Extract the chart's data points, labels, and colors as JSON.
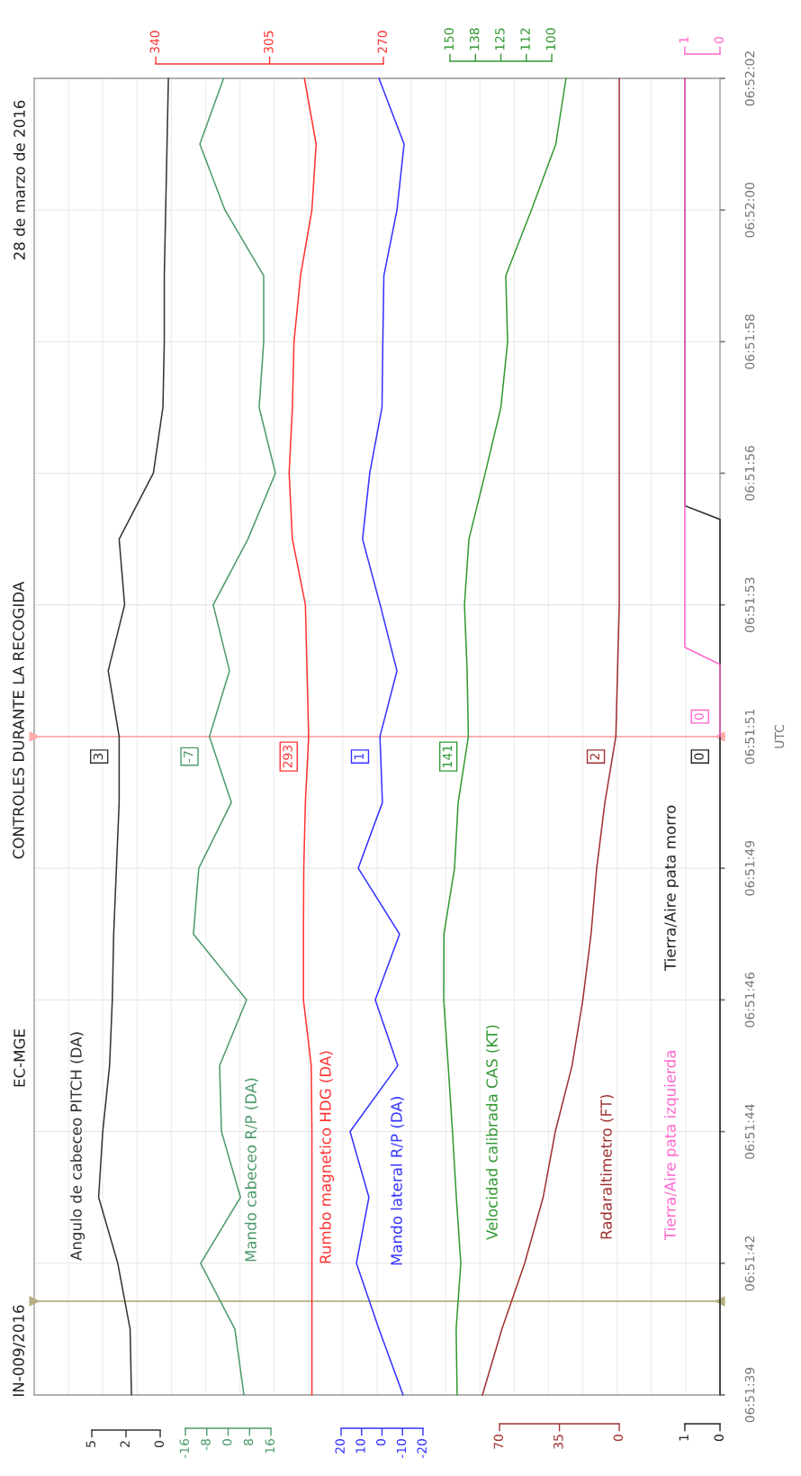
{
  "chart_data": [
    {
      "type": "line",
      "orientation": "horizontal",
      "title": "CONTROLES DURANTE LA RECOGIDA",
      "subtitle": "28 de marzo de 2016",
      "annotations": [
        "IN-009/2016",
        "EC-MGE"
      ],
      "ylabel": "UTC",
      "grid": true,
      "x": [
        6.860958,
        6.861278,
        6.861597,
        6.861917,
        6.862236,
        6.862556,
        6.862875,
        6.863194,
        6.863514,
        6.863833,
        6.864153,
        6.864472,
        6.864792,
        6.865111,
        6.865431,
        6.86575,
        6.866069,
        6.866389,
        6.866708,
        6.867028,
        6.867347
      ],
      "ylim": [
        6.860958,
        6.867347
      ],
      "yticks": [
        {
          "value": 6.860958,
          "label": "06:51:39"
        },
        {
          "value": 6.861597,
          "label": "06:51:42"
        },
        {
          "value": 6.862236,
          "label": "06:51:44"
        },
        {
          "value": 6.862875,
          "label": "06:51:46"
        },
        {
          "value": 6.863514,
          "label": "06:51:49"
        },
        {
          "value": 6.864153,
          "label": "06:51:51"
        },
        {
          "value": 6.864792,
          "label": "06:51:53"
        },
        {
          "value": 6.865431,
          "label": "06:51:56"
        },
        {
          "value": 6.866069,
          "label": "06:51:58"
        },
        {
          "value": 6.866708,
          "label": "06:52:00"
        },
        {
          "value": 6.867347,
          "label": "06:52:02"
        }
      ],
      "xlim": [
        9.21,
        -40.92
      ],
      "xticks": [
        0,
        {
          "value": 2.5,
          "label": "2"
        },
        5
      ],
      "ref_lines": [
        {
          "axis": "y",
          "value": 6.864153,
          "color": "#ffaaaa"
        },
        {
          "axis": "y",
          "value": 6.861413,
          "color": "#b5ae80"
        }
      ],
      "series": [
        {
          "name": "Angulo de cabeceo PITCH (DA)",
          "color": "#333333",
          "values": [
            2.1,
            2.2,
            3.1,
            4.5,
            4.2,
            3.7,
            3.5,
            3.4,
            3.2,
            3.0,
            3,
            3.8,
            2.6,
            3.0,
            0.5,
            -0.2,
            -0.3,
            -0.3,
            -0.4,
            -0.5,
            -0.6
          ],
          "value_labels": [
            null,
            null,
            null,
            null,
            null,
            null,
            null,
            null,
            null,
            null,
            "3",
            null,
            null,
            null,
            null,
            null,
            null,
            null,
            null,
            null,
            null
          ]
        }
      ]
    },
    {
      "type": "line",
      "orientation": "horizontal",
      "tick_labels": "x",
      "x": [
        6.860958,
        6.861278,
        6.861597,
        6.861917,
        6.862236,
        6.862556,
        6.862875,
        6.863194,
        6.863514,
        6.863833,
        6.864153,
        6.864472,
        6.864792,
        6.865111,
        6.865431,
        6.86575,
        6.866069,
        6.866389,
        6.866708,
        6.867028,
        6.867347
      ],
      "ylim": [
        6.860958,
        6.867347
      ],
      "xlim": [
        -72.6,
        184.1
      ],
      "xticks": [
        -16,
        -8,
        0,
        8,
        16
      ],
      "series": [
        {
          "name": "Mando cabeceo R/P (DA)",
          "color": "#4c9a6a",
          "values": [
            5.9,
            2.5,
            -10.3,
            4.6,
            -2.5,
            -3.2,
            6.9,
            -13,
            -11,
            1.2,
            -7,
            0.5,
            -5.6,
            7.4,
            17.7,
            11.6,
            13.3,
            13.3,
            -1.2,
            -10.6,
            -1.7
          ],
          "value_labels": [
            null,
            null,
            null,
            null,
            null,
            null,
            null,
            null,
            null,
            null,
            "-7",
            null,
            null,
            null,
            null,
            null,
            null,
            null,
            null,
            null,
            null
          ]
        }
      ]
    },
    {
      "type": "line",
      "orientation": "horizontal",
      "tick_labels": "x",
      "x": [
        6.860958,
        6.861278,
        6.861597,
        6.861917,
        6.862236,
        6.862556,
        6.862875,
        6.863194,
        6.863514,
        6.863833,
        6.864153,
        6.864472,
        6.864792,
        6.865111,
        6.865431,
        6.86575,
        6.866069,
        6.866389,
        6.866708,
        6.867028,
        6.867347
      ],
      "ylim": [
        6.860958,
        6.867347
      ],
      "x2lim": [
        377.4,
        166.5
      ],
      "x2ticks": [
        270,
        305,
        340
      ],
      "series": [
        {
          "name": "Rumbo magnetico HDG (DA)",
          "color": "#ff3333",
          "axis": "x2",
          "values": [
            292,
            292,
            292,
            292,
            292,
            292.2,
            294.6,
            294.6,
            294.5,
            294,
            293,
            293.5,
            294,
            298,
            299,
            298,
            297.5,
            295.5,
            292,
            290.7,
            294.3
          ],
          "value_labels": [
            null,
            null,
            null,
            null,
            null,
            null,
            null,
            null,
            null,
            null,
            "293",
            null,
            null,
            null,
            null,
            null,
            null,
            null,
            null,
            null,
            null
          ]
        }
      ]
    },
    {
      "type": "line",
      "orientation": "horizontal",
      "tick_labels": "x",
      "x": [
        6.860958,
        6.861278,
        6.861597,
        6.861917,
        6.862236,
        6.862556,
        6.862875,
        6.863194,
        6.863514,
        6.863833,
        6.864153,
        6.864472,
        6.864792,
        6.865111,
        6.865431,
        6.86575,
        6.866069,
        6.866389,
        6.866708,
        6.867028,
        6.867347
      ],
      "ylim": [
        6.860958,
        6.867347
      ],
      "xlim": [
        169.9,
        -165.1
      ],
      "xticks": [
        -20,
        -10,
        0,
        10,
        20
      ],
      "series": [
        {
          "name": "Mando lateral R/P (DA)",
          "color": "#3333ff",
          "values": [
            -10.3,
            1.5,
            12.5,
            6.4,
            15.6,
            -7.7,
            3.3,
            -8.6,
            11.6,
            -0.2,
            1,
            -7.3,
            0.9,
            9.5,
            6,
            0,
            -0.4,
            -0.9,
            -7.3,
            -10.8,
            1.5
          ],
          "value_labels": [
            null,
            null,
            null,
            null,
            null,
            null,
            null,
            null,
            null,
            null,
            "1",
            null,
            null,
            null,
            null,
            null,
            null,
            null,
            null,
            null,
            null
          ]
        }
      ]
    },
    {
      "type": "line",
      "orientation": "horizontal",
      "tick_labels": "x",
      "x": [
        6.860958,
        6.861278,
        6.861597,
        6.861917,
        6.862236,
        6.862556,
        6.862875,
        6.863194,
        6.863514,
        6.863833,
        6.864153,
        6.864472,
        6.864792,
        6.865111,
        6.865431,
        6.86575,
        6.866069,
        6.866389,
        6.866708,
        6.867028,
        6.867347
      ],
      "ylim": [
        6.860958,
        6.867347
      ],
      "x2lim": [
        354.4,
        17.3
      ],
      "x2ticks": [
        100,
        {
          "value": 112.5,
          "label": "112"
        },
        125,
        {
          "value": 137.5,
          "label": "138"
        },
        150
      ],
      "series": [
        {
          "name": "Velocidad calibrada CAS (KT)",
          "color": "#339933",
          "axis": "x2",
          "values": [
            146.5,
            147,
            144.7,
            146.9,
            148.8,
            150.9,
            153.1,
            153,
            147.8,
            146,
            141,
            141.6,
            142.9,
            140.7,
            132.7,
            125,
            121.7,
            122.6,
            110,
            98,
            93
          ],
          "value_labels": [
            null,
            null,
            null,
            null,
            null,
            null,
            null,
            null,
            null,
            null,
            "141",
            null,
            null,
            null,
            null,
            null,
            null,
            null,
            null,
            null,
            null
          ]
        }
      ]
    },
    {
      "type": "line",
      "orientation": "horizontal",
      "tick_labels": "x",
      "x": [
        6.860958,
        6.861278,
        6.861597,
        6.861917,
        6.862236,
        6.862556,
        6.862875,
        6.863194,
        6.863514,
        6.863833,
        6.864153,
        6.864472,
        6.864792,
        6.865111,
        6.865431,
        6.86575,
        6.866069,
        6.866389,
        6.866708,
        6.867028,
        6.867347
      ],
      "ylim": [
        6.860958,
        6.867347
      ],
      "xlim": [
        342.1,
        -58.9
      ],
      "xticks": [
        0,
        35,
        70
      ],
      "series": [
        {
          "name": "Radaraltimetro (FT)",
          "color": "#a03030",
          "values": [
            80,
            68.6,
            55.3,
            44.5,
            37.4,
            27.6,
            21.3,
            16.5,
            13.2,
            8.4,
            2,
            1,
            0,
            0,
            0,
            0,
            0,
            0,
            0,
            0,
            0
          ],
          "value_labels": [
            null,
            null,
            null,
            null,
            null,
            null,
            null,
            null,
            null,
            null,
            "2",
            null,
            null,
            null,
            null,
            null,
            null,
            null,
            null,
            null,
            null
          ]
        }
      ]
    },
    {
      "type": "line",
      "orientation": "horizontal",
      "tick_labels": "x",
      "x": [
        6.860958,
        6.864153,
        6.865207,
        6.865273,
        6.867347
      ],
      "ylim": [
        6.860958,
        6.867347
      ],
      "xlim": [
        19.5,
        0
      ],
      "xticks": [
        0,
        1
      ],
      "series": [
        {
          "name": "Tierra/Aire pata morro",
          "color": "#222222",
          "values": [
            0,
            0,
            0,
            1,
            1
          ],
          "value_labels": [
            null,
            "0",
            null,
            null,
            null
          ]
        }
      ]
    },
    {
      "type": "line",
      "orientation": "horizontal",
      "tick_labels": "x",
      "x": [
        6.864153,
        6.864503,
        6.864586,
        6.867347
      ],
      "ylim": [
        6.860958,
        6.867347
      ],
      "x2lim": [
        19.5,
        0
      ],
      "x2ticks": [
        0,
        1
      ],
      "series": [
        {
          "name": "Tierra/Aire pata izquierda",
          "color": "#ff66cc",
          "axis": "x2",
          "values": [
            0,
            0,
            1,
            1
          ],
          "value_labels": [
            "0",
            null,
            null,
            null
          ]
        }
      ]
    }
  ]
}
